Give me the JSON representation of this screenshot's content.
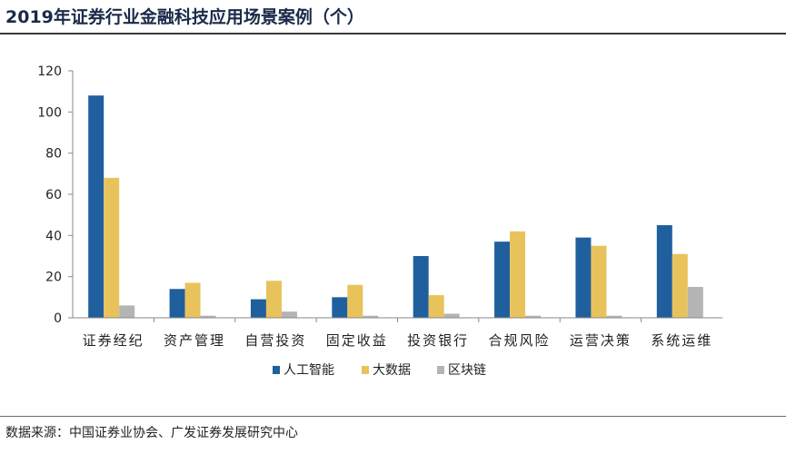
{
  "title": "2019年证券行业金融科技应用场景案例（个）",
  "source": "数据来源：中国证券业协会、广发证券发展研究中心",
  "chart_data": {
    "type": "bar",
    "categories": [
      "证券经纪",
      "资产管理",
      "自营投资",
      "固定收益",
      "投资银行",
      "合规风险",
      "运营决策",
      "系统运维"
    ],
    "series": [
      {
        "name": "人工智能",
        "color": "#1f5f9e",
        "values": [
          108,
          14,
          9,
          10,
          30,
          37,
          39,
          45
        ]
      },
      {
        "name": "大数据",
        "color": "#e8c35c",
        "values": [
          68,
          17,
          18,
          16,
          11,
          42,
          35,
          31
        ]
      },
      {
        "name": "区块链",
        "color": "#b4b4b4",
        "values": [
          6,
          1,
          3,
          1,
          2,
          1,
          1,
          15
        ]
      }
    ],
    "y_ticks": [
      "0",
      "20",
      "40",
      "60",
      "80",
      "100",
      "120"
    ],
    "ylim": [
      0,
      120
    ],
    "grid": false,
    "legend_position": "bottom"
  }
}
